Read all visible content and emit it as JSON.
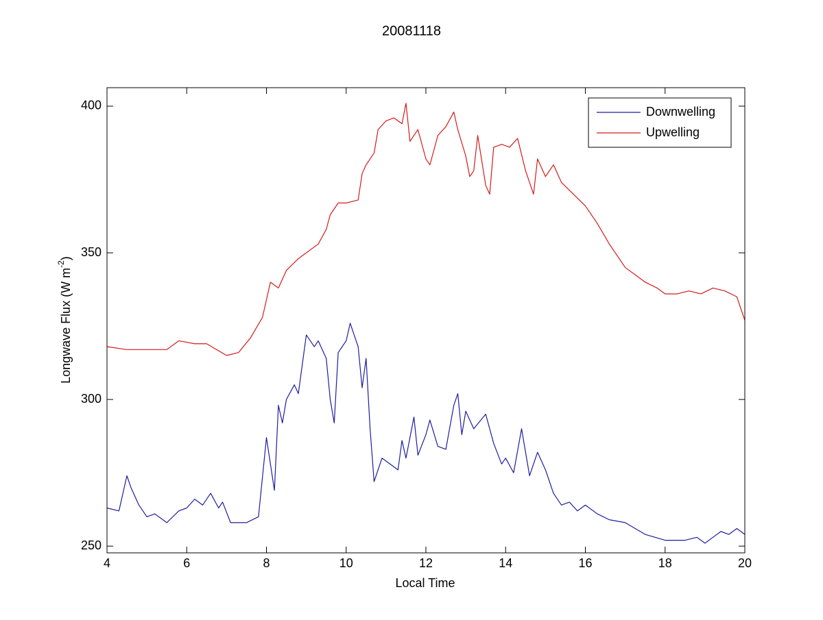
{
  "chart_data": {
    "type": "line",
    "title": "20081118",
    "xlabel": "Local Time",
    "ylabel": {
      "text": "Longwave Flux (W m",
      "superscript": "-2",
      "suffix": ")"
    },
    "xlim": [
      4,
      20
    ],
    "ylim": [
      247.7,
      406.3
    ],
    "xticks": [
      4,
      6,
      8,
      10,
      12,
      14,
      16,
      18,
      20
    ],
    "yticks": [
      250,
      300,
      350,
      400
    ],
    "grid": false,
    "legend": "upper right",
    "series": [
      {
        "name": "Downwelling",
        "color": "#1c1ca0",
        "x": [
          4.0,
          4.3,
          4.5,
          4.6,
          4.8,
          5.0,
          5.2,
          5.5,
          5.8,
          6.0,
          6.2,
          6.4,
          6.6,
          6.8,
          6.9,
          7.1,
          7.5,
          7.8,
          8.0,
          8.2,
          8.3,
          8.4,
          8.5,
          8.7,
          8.8,
          9.0,
          9.2,
          9.3,
          9.5,
          9.6,
          9.7,
          9.8,
          10.0,
          10.1,
          10.3,
          10.4,
          10.5,
          10.6,
          10.7,
          10.9,
          11.1,
          11.3,
          11.4,
          11.5,
          11.7,
          11.8,
          12.0,
          12.1,
          12.3,
          12.5,
          12.7,
          12.8,
          12.9,
          13.0,
          13.2,
          13.5,
          13.7,
          13.9,
          14.0,
          14.2,
          14.4,
          14.6,
          14.8,
          15.0,
          15.2,
          15.4,
          15.6,
          15.8,
          16.0,
          16.3,
          16.6,
          17.0,
          17.5,
          18.0,
          18.5,
          18.8,
          19.0,
          19.2,
          19.4,
          19.6,
          19.8,
          20.0
        ],
        "values": [
          263,
          262,
          274,
          270,
          264,
          260,
          261,
          258,
          262,
          263,
          266,
          264,
          268,
          263,
          265,
          258,
          258,
          260,
          287,
          269,
          298,
          292,
          300,
          305,
          302,
          322,
          318,
          320,
          314,
          300,
          292,
          316,
          320,
          326,
          318,
          304,
          314,
          290,
          272,
          280,
          278,
          276,
          286,
          280,
          294,
          281,
          288,
          293,
          284,
          283,
          298,
          302,
          288,
          296,
          290,
          295,
          285,
          278,
          280,
          275,
          290,
          274,
          282,
          276,
          268,
          264,
          265,
          262,
          264,
          261,
          259,
          258,
          254,
          252,
          252,
          253,
          251,
          253,
          255,
          254,
          256,
          254
        ]
      },
      {
        "name": "Upwelling",
        "color": "#d41a1a",
        "x": [
          4.0,
          4.5,
          5.0,
          5.5,
          5.8,
          6.2,
          6.5,
          7.0,
          7.3,
          7.6,
          7.9,
          8.1,
          8.3,
          8.5,
          8.8,
          9.0,
          9.3,
          9.5,
          9.6,
          9.8,
          10.0,
          10.3,
          10.4,
          10.5,
          10.7,
          10.8,
          11.0,
          11.2,
          11.4,
          11.5,
          11.6,
          11.8,
          12.0,
          12.1,
          12.3,
          12.5,
          12.7,
          12.8,
          13.0,
          13.1,
          13.2,
          13.3,
          13.5,
          13.6,
          13.7,
          13.9,
          14.1,
          14.3,
          14.5,
          14.7,
          14.8,
          15.0,
          15.2,
          15.4,
          15.7,
          16.0,
          16.3,
          16.6,
          17.0,
          17.3,
          17.5,
          17.8,
          18.0,
          18.3,
          18.6,
          18.9,
          19.2,
          19.5,
          19.8,
          20.0
        ],
        "values": [
          318,
          317,
          317,
          317,
          320,
          319,
          319,
          315,
          316,
          321,
          328,
          340,
          338,
          344,
          348,
          350,
          353,
          358,
          363,
          367,
          367,
          368,
          377,
          380,
          384,
          392,
          395,
          396,
          394,
          401,
          388,
          392,
          382,
          380,
          390,
          393,
          398,
          392,
          383,
          376,
          378,
          390,
          373,
          370,
          386,
          387,
          386,
          389,
          378,
          370,
          382,
          376,
          380,
          374,
          370,
          366,
          360,
          353,
          345,
          342,
          340,
          338,
          336,
          336,
          337,
          336,
          338,
          337,
          335,
          327
        ]
      }
    ]
  }
}
